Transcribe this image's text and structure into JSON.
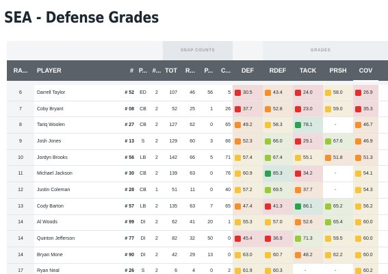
{
  "page": {
    "title": "SEA - Defense Grades"
  },
  "groups": {
    "snap_counts": "SNAP COUNTS",
    "grades": "GRADES"
  },
  "columns": {
    "rank": "RA...",
    "player": "PLAYER",
    "number": "#",
    "position": "P...",
    "games": "#...",
    "tot": "TOT",
    "r": "R...",
    "p": "P...",
    "c": "C...",
    "def": "DEF",
    "rdef": "RDEF",
    "tack": "TACK",
    "prsh": "PRSH",
    "cov": "COV"
  },
  "grade_colors": {
    "red": "#e0302b",
    "orange": "#f2902f",
    "yellow": "#f5c33c",
    "lightgreen": "#9cc63c",
    "green": "#2fa050"
  },
  "rows": [
    {
      "rank": "6",
      "player": "Darrell Taylor",
      "number": "# 52",
      "position": "ED",
      "games": "2",
      "tot": "107",
      "r": "46",
      "p": "56",
      "c": "5",
      "grades": [
        {
          "value": "30.5",
          "color": "red"
        },
        {
          "value": "43.4",
          "color": "orange"
        },
        {
          "value": "24.0",
          "color": "red"
        },
        {
          "value": "58.0",
          "color": "yellow"
        },
        {
          "value": "26.9",
          "color": "red"
        }
      ]
    },
    {
      "rank": "7",
      "player": "Coby Bryant",
      "number": "# 08",
      "position": "CB",
      "games": "2",
      "tot": "52",
      "r": "25",
      "p": "1",
      "c": "26",
      "grades": [
        {
          "value": "37.7",
          "color": "red"
        },
        {
          "value": "52.8",
          "color": "orange"
        },
        {
          "value": "23.0",
          "color": "red"
        },
        {
          "value": "59.0",
          "color": "yellow"
        },
        {
          "value": "35.3",
          "color": "red"
        }
      ]
    },
    {
      "rank": "8",
      "player": "Tariq Woolen",
      "number": "# 27",
      "position": "CB",
      "games": "2",
      "tot": "127",
      "r": "62",
      "p": "0",
      "c": "65",
      "grades": [
        {
          "value": "49.2",
          "color": "orange"
        },
        {
          "value": "58.3",
          "color": "yellow"
        },
        {
          "value": "78.1",
          "color": "green"
        },
        {
          "value": "-",
          "color": ""
        },
        {
          "value": "46.7",
          "color": "orange"
        }
      ]
    },
    {
      "rank": "9",
      "player": "Josh Jones",
      "number": "# 13",
      "position": "S",
      "games": "2",
      "tot": "129",
      "r": "60",
      "p": "3",
      "c": "66",
      "grades": [
        {
          "value": "52.3",
          "color": "orange"
        },
        {
          "value": "66.0",
          "color": "lightgreen"
        },
        {
          "value": "29.1",
          "color": "red"
        },
        {
          "value": "67.6",
          "color": "lightgreen"
        },
        {
          "value": "46.9",
          "color": "orange"
        }
      ]
    },
    {
      "rank": "10",
      "player": "Jordyn Brooks",
      "number": "# 56",
      "position": "LB",
      "games": "2",
      "tot": "142",
      "r": "66",
      "p": "5",
      "c": "71",
      "grades": [
        {
          "value": "57.4",
          "color": "yellow"
        },
        {
          "value": "67.4",
          "color": "lightgreen"
        },
        {
          "value": "55.1",
          "color": "yellow"
        },
        {
          "value": "51.8",
          "color": "orange"
        },
        {
          "value": "51.3",
          "color": "orange"
        }
      ]
    },
    {
      "rank": "11",
      "player": "Michael Jackson",
      "number": "# 30",
      "position": "CB",
      "games": "2",
      "tot": "139",
      "r": "63",
      "p": "0",
      "c": "76",
      "grades": [
        {
          "value": "60.9",
          "color": "yellow"
        },
        {
          "value": "85.3",
          "color": "green"
        },
        {
          "value": "34.2",
          "color": "red"
        },
        {
          "value": "-",
          "color": ""
        },
        {
          "value": "54.1",
          "color": "yellow"
        }
      ]
    },
    {
      "rank": "12",
      "player": "Justin Coleman",
      "number": "# 28",
      "position": "CB",
      "games": "1",
      "tot": "51",
      "r": "11",
      "p": "0",
      "c": "40",
      "grades": [
        {
          "value": "57.2",
          "color": "yellow"
        },
        {
          "value": "69.5",
          "color": "lightgreen"
        },
        {
          "value": "37.7",
          "color": "orange"
        },
        {
          "value": "-",
          "color": ""
        },
        {
          "value": "54.3",
          "color": "yellow"
        }
      ]
    },
    {
      "rank": "13",
      "player": "Cody Barton",
      "number": "# 57",
      "position": "LB",
      "games": "2",
      "tot": "135",
      "r": "63",
      "p": "7",
      "c": "65",
      "grades": [
        {
          "value": "47.4",
          "color": "orange"
        },
        {
          "value": "41.3",
          "color": "red"
        },
        {
          "value": "86.1",
          "color": "green"
        },
        {
          "value": "65.2",
          "color": "lightgreen"
        },
        {
          "value": "56.2",
          "color": "yellow"
        }
      ]
    },
    {
      "rank": "14",
      "player": "Al Woods",
      "number": "# 99",
      "position": "DI",
      "games": "2",
      "tot": "62",
      "r": "41",
      "p": "20",
      "c": "1",
      "grades": [
        {
          "value": "55.3",
          "color": "yellow"
        },
        {
          "value": "57.0",
          "color": "yellow"
        },
        {
          "value": "52.6",
          "color": "orange"
        },
        {
          "value": "65.4",
          "color": "lightgreen"
        },
        {
          "value": "60.0",
          "color": "yellow"
        }
      ]
    },
    {
      "rank": "14",
      "player": "Quinton Jefferson",
      "number": "# 77",
      "position": "DI",
      "games": "2",
      "tot": "82",
      "r": "32",
      "p": "50",
      "c": "0",
      "grades": [
        {
          "value": "45.4",
          "color": "red"
        },
        {
          "value": "36.9",
          "color": "red"
        },
        {
          "value": "71.3",
          "color": "lightgreen"
        },
        {
          "value": "59.5",
          "color": "yellow"
        },
        {
          "value": "60.0",
          "color": "yellow"
        }
      ]
    },
    {
      "rank": "14",
      "player": "Bryan Mone",
      "number": "# 90",
      "position": "DI",
      "games": "2",
      "tot": "42",
      "r": "29",
      "p": "13",
      "c": "0",
      "grades": [
        {
          "value": "63.0",
          "color": "yellow"
        },
        {
          "value": "60.7",
          "color": "yellow"
        },
        {
          "value": "48.2",
          "color": "orange"
        },
        {
          "value": "62.2",
          "color": "yellow"
        },
        {
          "value": "60.0",
          "color": "yellow"
        }
      ]
    },
    {
      "rank": "17",
      "player": "Ryan Neal",
      "number": "# 26",
      "position": "S",
      "games": "2",
      "tot": "6",
      "r": "4",
      "p": "0",
      "c": "2",
      "grades": [
        {
          "value": "61.9",
          "color": "yellow"
        },
        {
          "value": "60.3",
          "color": "yellow"
        },
        {
          "value": "-",
          "color": ""
        },
        {
          "value": "-",
          "color": ""
        },
        {
          "value": "60.2",
          "color": "yellow"
        }
      ]
    }
  ]
}
